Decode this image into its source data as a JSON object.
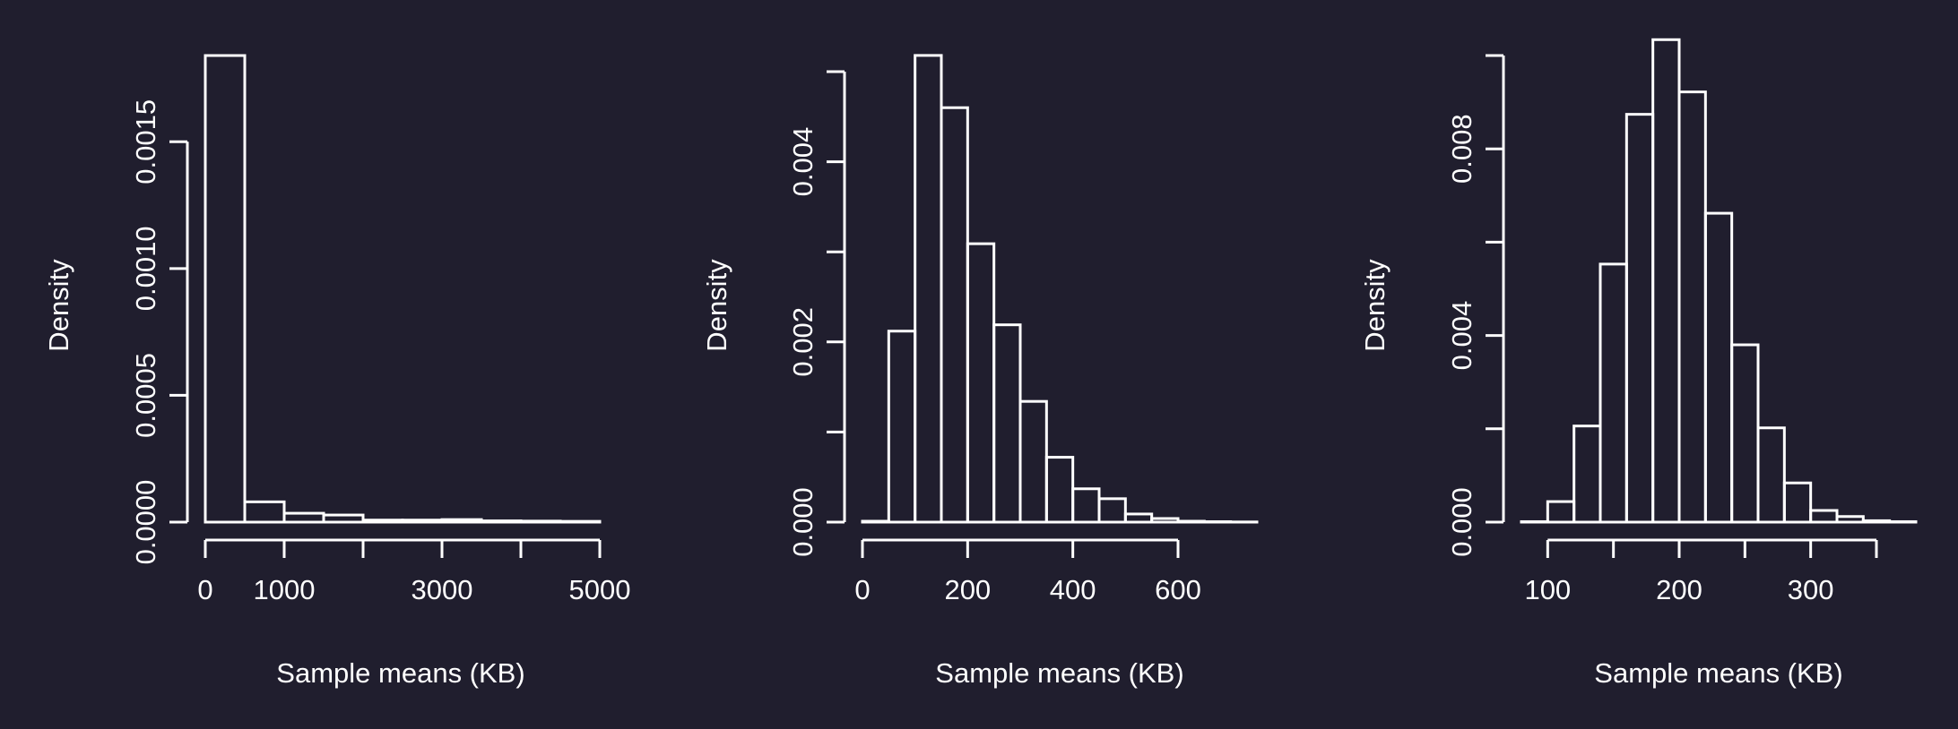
{
  "colors": {
    "background": "#201e2e",
    "foreground": "#ffffff"
  },
  "chart_data": [
    {
      "type": "bar",
      "subtype": "histogram",
      "xlabel": "Sample means (KB)",
      "ylabel": "Density",
      "bin_edges": [
        0,
        500,
        1000,
        1500,
        2000,
        2500,
        3000,
        3500,
        4000,
        4500,
        5000
      ],
      "values": [
        0.00184,
        8e-05,
        3.5e-05,
        2.8e-05,
        8e-06,
        8e-06,
        1e-05,
        5e-06,
        4e-06,
        3e-06
      ],
      "x_ticks": [
        0,
        1000,
        2000,
        3000,
        4000,
        5000
      ],
      "x_tick_labels": [
        "0",
        "1000",
        "",
        "3000",
        "",
        "5000"
      ],
      "y_ticks": [
        0,
        0.0005,
        0.001,
        0.0015
      ],
      "y_tick_labels": [
        "0.0000",
        "0.0005",
        "0.0010",
        "0.0015"
      ],
      "xlim": [
        0,
        5000
      ],
      "ylim": [
        0,
        0.00184
      ],
      "grid": false
    },
    {
      "type": "bar",
      "subtype": "histogram",
      "xlabel": "Sample means (KB)",
      "ylabel": "Density",
      "bin_edges": [
        0,
        50,
        100,
        150,
        200,
        250,
        300,
        350,
        400,
        450,
        500,
        550,
        600,
        650,
        700,
        750
      ],
      "values": [
        1e-05,
        0.00212,
        0.00518,
        0.0046,
        0.00309,
        0.00219,
        0.00134,
        0.00072,
        0.00037,
        0.00026,
        9e-05,
        4e-05,
        1e-05,
        5e-06,
        2e-06
      ],
      "x_ticks": [
        0,
        200,
        400,
        600
      ],
      "x_tick_labels": [
        "0",
        "200",
        "400",
        "600"
      ],
      "y_ticks": [
        0,
        0.001,
        0.002,
        0.003,
        0.004,
        0.005
      ],
      "y_tick_labels": [
        "0.000",
        "",
        "0.002",
        "",
        "0.004",
        ""
      ],
      "xlim": [
        0,
        750
      ],
      "ylim": [
        0,
        0.005
      ],
      "grid": false
    },
    {
      "type": "bar",
      "subtype": "histogram",
      "xlabel": "Sample means (KB)",
      "ylabel": "Density",
      "bin_edges": [
        80,
        100,
        120,
        140,
        160,
        180,
        200,
        220,
        240,
        260,
        280,
        300,
        320,
        340,
        360,
        380
      ],
      "values": [
        1e-05,
        0.00044,
        0.00206,
        0.00553,
        0.00874,
        0.01034,
        0.00922,
        0.00662,
        0.0038,
        0.00202,
        0.00084,
        0.00025,
        0.00012,
        3e-05,
        1e-05
      ],
      "x_ticks": [
        100,
        150,
        200,
        250,
        300,
        350
      ],
      "x_tick_labels": [
        "100",
        "",
        "200",
        "",
        "300",
        ""
      ],
      "y_ticks": [
        0,
        0.002,
        0.004,
        0.006,
        0.008,
        0.01
      ],
      "y_tick_labels": [
        "0.000",
        "",
        "0.004",
        "",
        "0.008",
        ""
      ],
      "xlim": [
        80,
        380
      ],
      "ylim": [
        0,
        0.01
      ],
      "grid": false
    }
  ]
}
